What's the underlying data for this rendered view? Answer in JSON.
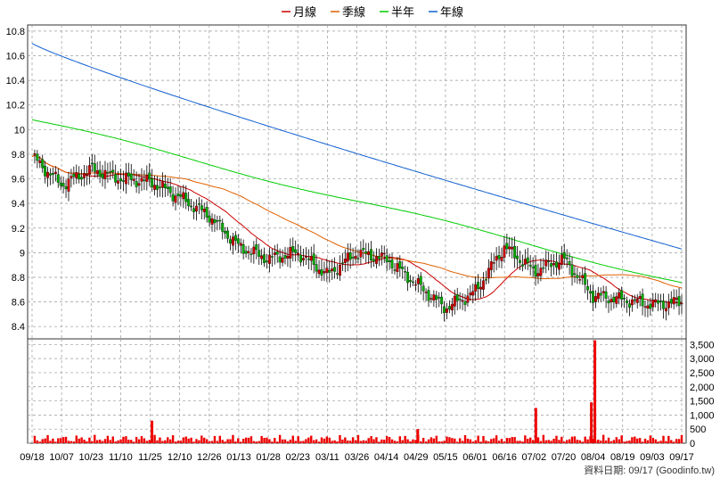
{
  "legend": [
    {
      "label": "月線",
      "color": "#cc0000"
    },
    {
      "label": "季線",
      "color": "#e06000"
    },
    {
      "label": "半年",
      "color": "#00cc00"
    },
    {
      "label": "年線",
      "color": "#1060d0"
    }
  ],
  "source_text": "資料日期: 09/17  (Goodinfo.tw)",
  "colors": {
    "up": "#cc0000",
    "down": "#00aa00",
    "volume": "#ee0000",
    "grid": "#999999"
  },
  "chart_data": [
    {
      "type": "candlestick",
      "ylim": [
        8.3,
        10.85
      ],
      "yticks": [
        "8.4",
        "8.6",
        "8.8",
        "9",
        "9.2",
        "9.4",
        "9.6",
        "9.8",
        "10",
        "10.2",
        "10.4",
        "10.6",
        "10.8"
      ],
      "x_labels": [
        "09/18",
        "10/07",
        "10/23",
        "11/10",
        "11/25",
        "12/10",
        "12/26",
        "01/13",
        "01/28",
        "02/23",
        "03/11",
        "03/26",
        "04/14",
        "04/29",
        "05/15",
        "06/01",
        "06/16",
        "07/02",
        "07/20",
        "08/04",
        "08/19",
        "09/03",
        "09/17"
      ],
      "close_path": [
        [
          "09/18",
          9.78
        ],
        [
          "10/07",
          9.55
        ],
        [
          "10/23",
          9.68
        ],
        [
          "11/10",
          9.6
        ],
        [
          "11/25",
          9.58
        ],
        [
          "12/10",
          9.45
        ],
        [
          "12/26",
          9.3
        ],
        [
          "01/13",
          9.05
        ],
        [
          "01/28",
          8.95
        ],
        [
          "02/23",
          9.0
        ],
        [
          "03/11",
          8.82
        ],
        [
          "03/26",
          9.0
        ],
        [
          "04/14",
          8.95
        ],
        [
          "04/29",
          8.75
        ],
        [
          "05/15",
          8.55
        ],
        [
          "06/01",
          8.68
        ],
        [
          "06/16",
          9.05
        ],
        [
          "07/02",
          8.85
        ],
        [
          "07/20",
          8.95
        ],
        [
          "08/04",
          8.65
        ],
        [
          "08/19",
          8.62
        ],
        [
          "09/03",
          8.58
        ],
        [
          "09/17",
          8.6
        ]
      ],
      "grid": true
    },
    {
      "type": "bar",
      "yticks": [
        "0",
        "500",
        "1,000",
        "1,500",
        "2,000",
        "2,500",
        "3,000",
        "3,500"
      ],
      "ylim": [
        0,
        3700
      ],
      "spikes": [
        {
          "x": "11/25",
          "value": 800
        },
        {
          "x": "04/29",
          "value": 500
        },
        {
          "x": "07/02",
          "value": 1250
        },
        {
          "x": "08/04",
          "value": 3650
        },
        {
          "x": "08/04",
          "value": 1450
        }
      ],
      "base_range": [
        50,
        300
      ]
    }
  ]
}
